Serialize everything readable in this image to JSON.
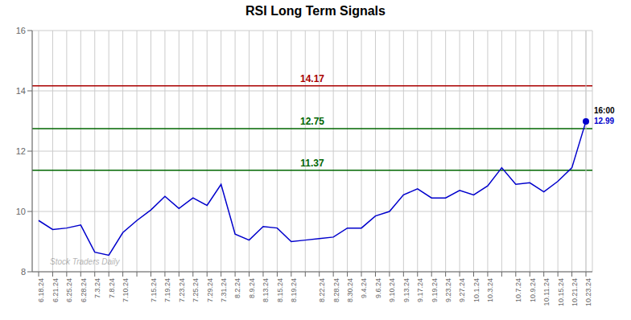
{
  "chart_data": {
    "type": "line",
    "title": "RSI Long Term Signals",
    "watermark": "Stock Traders Daily",
    "color": "#0000CC",
    "categories": [
      "6.18.24",
      "6.21.24",
      "6.25.24",
      "6.28.24",
      "7.3.24",
      "7.8.24",
      "7.10.24",
      null,
      "7.15.24",
      "7.19.24",
      "7.23.24",
      "7.25.24",
      "7.29.24",
      "7.31.24",
      "8.2.24",
      "8.9.24",
      "8.13.24",
      "8.15.24",
      "8.19.24",
      null,
      "8.22.24",
      "8.28.24",
      "8.30.24",
      "9.4.24",
      "9.6.24",
      "9.10.24",
      "9.13.24",
      "9.17.24",
      "9.19.24",
      "9.23.24",
      "9.27.24",
      "10.1.24",
      "10.3.24",
      null,
      "10.7.24",
      "10.9.24",
      "10.11.24",
      "10.15.24",
      "10.21.24",
      "10.23.24"
    ],
    "values": [
      9.7,
      9.4,
      9.45,
      9.55,
      8.65,
      8.55,
      9.3,
      9.7,
      10.05,
      10.5,
      10.1,
      10.45,
      10.2,
      10.9,
      9.25,
      9.05,
      9.5,
      9.45,
      9.0,
      9.05,
      9.1,
      9.15,
      9.45,
      9.45,
      9.85,
      10.0,
      10.55,
      10.75,
      10.45,
      10.45,
      10.7,
      10.55,
      10.85,
      11.45,
      10.9,
      10.95,
      10.65,
      11.0,
      11.45,
      12.99
    ],
    "ylim": [
      8,
      16
    ],
    "yticks": [
      8,
      10,
      12,
      14,
      16
    ],
    "grid": true,
    "hlines": [
      {
        "value": 14.17,
        "label": "14.17",
        "color": "#aa0000"
      },
      {
        "value": 12.75,
        "label": "12.75",
        "color": "#006600"
      },
      {
        "value": 11.37,
        "label": "11.37",
        "color": "#006600"
      }
    ],
    "annotations": [
      {
        "text": "16:00"
      },
      {
        "text": "12.99",
        "color": "#0000CC"
      }
    ]
  }
}
